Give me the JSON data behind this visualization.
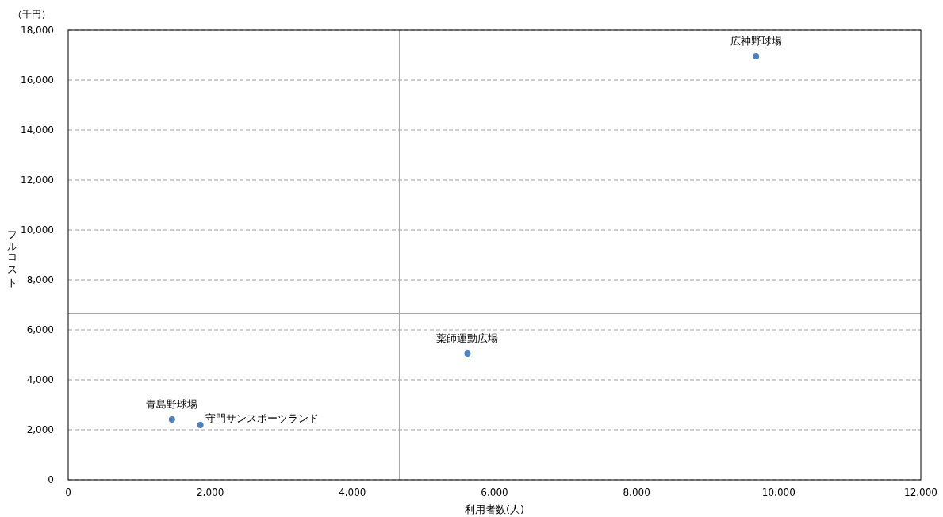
{
  "chart_data": {
    "type": "scatter",
    "xlabel": "利用者数(人)",
    "ylabel": "フルコスト",
    "annotations": [
      "（千円）"
    ],
    "xlim": [
      0,
      12000
    ],
    "ylim": [
      0,
      18000
    ],
    "xticks": [
      0,
      {
        "value": 2000,
        "label": "2,000"
      },
      {
        "value": 4000,
        "label": "4,000"
      },
      {
        "value": 6000,
        "label": "6,000"
      },
      {
        "value": 8000,
        "label": "8,000"
      },
      {
        "value": 10000,
        "label": "10,000"
      },
      {
        "value": 12000,
        "label": "12,000"
      }
    ],
    "yticks": [
      0,
      {
        "value": 2000,
        "label": "2,000"
      },
      {
        "value": 4000,
        "label": "4,000"
      },
      {
        "value": 6000,
        "label": "6,000"
      },
      {
        "value": 8000,
        "label": "8,000"
      },
      {
        "value": 10000,
        "label": "10,000"
      },
      {
        "value": 12000,
        "label": "12,000"
      },
      {
        "value": 14000,
        "label": "14,000"
      },
      {
        "value": 16000,
        "label": "16,000"
      },
      {
        "value": 18000,
        "label": "18,000"
      }
    ],
    "grid": "y",
    "marker": "circle",
    "ref_lines": [
      {
        "axis": "x",
        "value": 4660,
        "color": "#a6a6a6"
      },
      {
        "axis": "y",
        "value": 6650,
        "color": "#a6a6a6"
      }
    ],
    "series": [
      {
        "name": "広神野球場",
        "color": "#4f81bd",
        "x": [
          9680
        ],
        "values": [
          16950
        ]
      },
      {
        "name": "薬師運動広場",
        "color": "#4f81bd",
        "x": [
          5620
        ],
        "values": [
          5050
        ]
      },
      {
        "name": "青島野球場",
        "color": "#4f81bd",
        "x": [
          1460
        ],
        "values": [
          2410
        ]
      },
      {
        "name": "守門サンスポーツランド",
        "color": "#4f81bd",
        "x": [
          1860
        ],
        "values": [
          2190
        ]
      }
    ]
  }
}
